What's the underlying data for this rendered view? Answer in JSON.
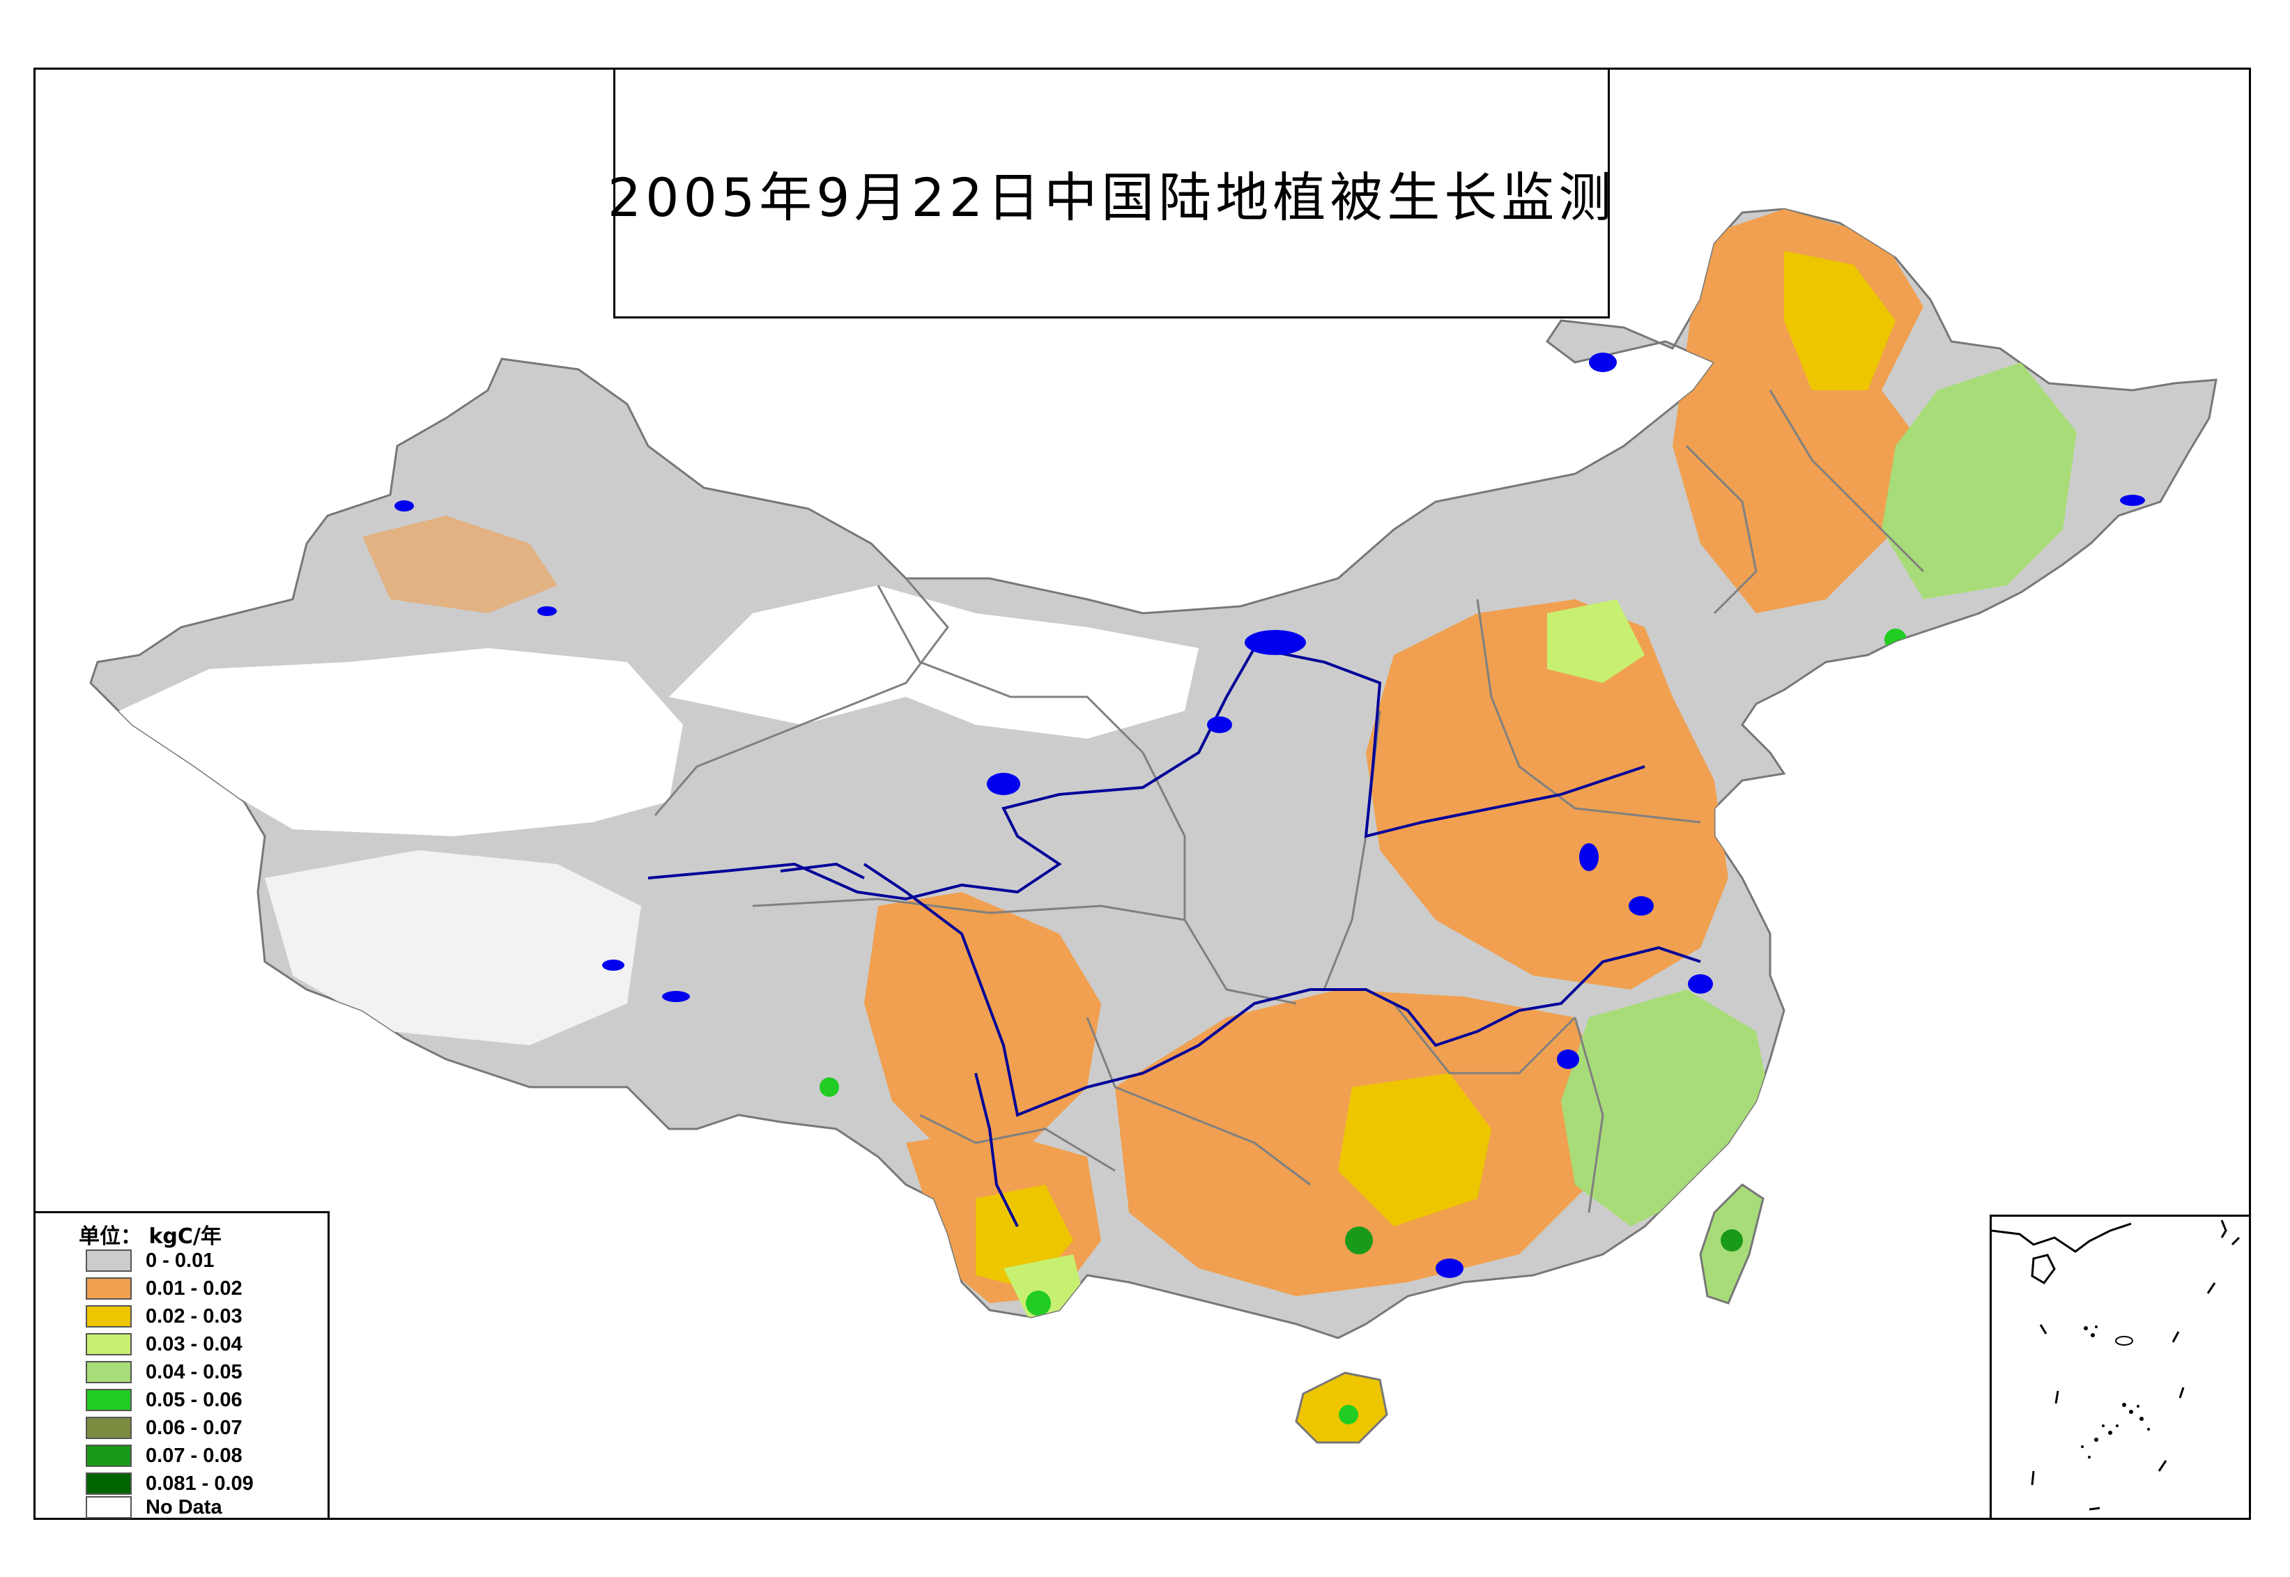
{
  "title": "2005年9月22日中国陆地植被生长监测",
  "legend": {
    "title": "单位： kgC/年",
    "items": [
      {
        "label": "0 - 0.01",
        "color": "#cccccc"
      },
      {
        "label": "0.01 - 0.02",
        "color": "#f0a050"
      },
      {
        "label": "0.02 - 0.03",
        "color": "#eec600"
      },
      {
        "label": "0.03 - 0.04",
        "color": "#c8f070"
      },
      {
        "label": "0.04 - 0.05",
        "color": "#a8dc78"
      },
      {
        "label": "0.05 - 0.06",
        "color": "#22cc22"
      },
      {
        "label": "0.06 - 0.07",
        "color": "#7a8c40"
      },
      {
        "label": "0.07 - 0.08",
        "color": "#1a9a1a"
      },
      {
        "label": "0.081 - 0.09",
        "color": "#006400"
      },
      {
        "label": "No Data",
        "color": "#ffffff"
      }
    ]
  },
  "colors": {
    "water": "#0000ee",
    "river": "#000099",
    "boundary": "#808080",
    "frame": "#000000"
  }
}
